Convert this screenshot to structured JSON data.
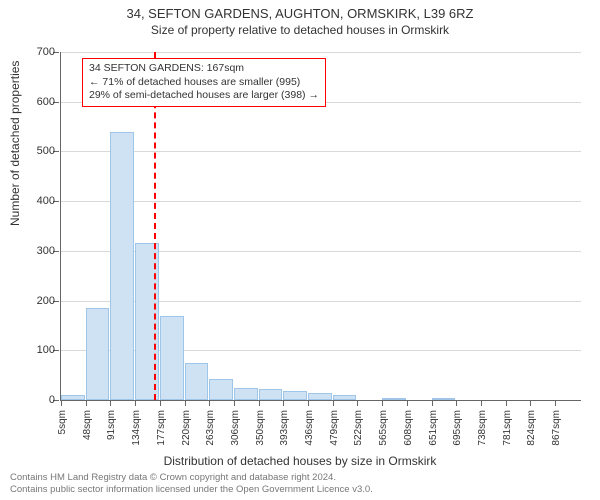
{
  "title": "34, SEFTON GARDENS, AUGHTON, ORMSKIRK, L39 6RZ",
  "subtitle": "Size of property relative to detached houses in Ormskirk",
  "ylabel": "Number of detached properties",
  "xlabel": "Distribution of detached houses by size in Ormskirk",
  "footer_line1": "Contains HM Land Registry data © Crown copyright and database right 2024.",
  "footer_line2": "Contains public sector information licensed under the Open Government Licence v3.0.",
  "histogram": {
    "type": "histogram",
    "ylim": [
      0,
      700
    ],
    "ytick_step": 100,
    "xlim_sqm": [
      5,
      910
    ],
    "bin_width_sqm": 43,
    "values": [
      10,
      185,
      540,
      315,
      170,
      75,
      42,
      25,
      22,
      18,
      14,
      10,
      0,
      2,
      0,
      4,
      0,
      0,
      0,
      0,
      0
    ],
    "xtick_labels": [
      "5sqm",
      "48sqm",
      "91sqm",
      "134sqm",
      "177sqm",
      "220sqm",
      "263sqm",
      "306sqm",
      "350sqm",
      "393sqm",
      "436sqm",
      "479sqm",
      "522sqm",
      "565sqm",
      "608sqm",
      "651sqm",
      "695sqm",
      "738sqm",
      "781sqm",
      "824sqm",
      "867sqm"
    ],
    "bar_fill": "#cfe2f3",
    "bar_stroke": "#9fc5e8",
    "grid_color": "#d9d9d9",
    "axis_color": "#666666",
    "tick_fontsize": 10,
    "label_fontsize": 12
  },
  "marker": {
    "sqm": 167,
    "line_color": "#ff0000",
    "box_border": "#ff0000",
    "lines": [
      "34 SEFTON GARDENS: 167sqm",
      "← 71% of detached houses are smaller (995)",
      "29% of semi-detached houses are larger (398) →"
    ]
  }
}
